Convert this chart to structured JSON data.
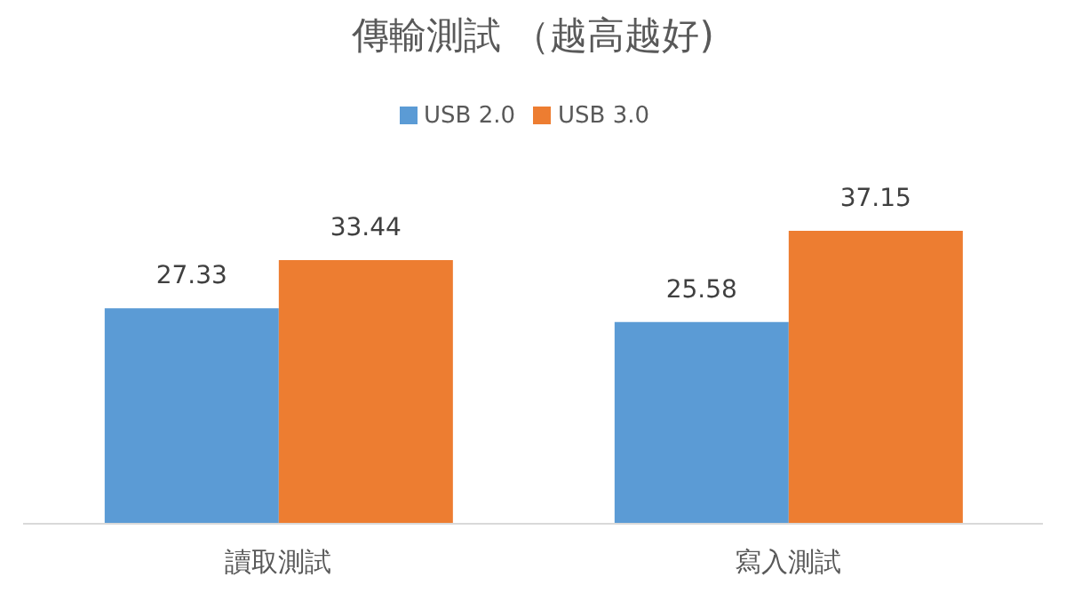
{
  "chart_data": {
    "type": "bar",
    "title": "傳輸測試 （越高越好)",
    "categories": [
      "讀取測試",
      "寫入測試"
    ],
    "series": [
      {
        "name": "USB 2.0",
        "color": "#5b9bd5",
        "values": [
          27.33,
          25.58
        ]
      },
      {
        "name": "USB 3.0",
        "color": "#ed7d31",
        "values": [
          33.44,
          37.15
        ]
      }
    ],
    "data_labels": true,
    "legend": "top",
    "grid": false
  }
}
